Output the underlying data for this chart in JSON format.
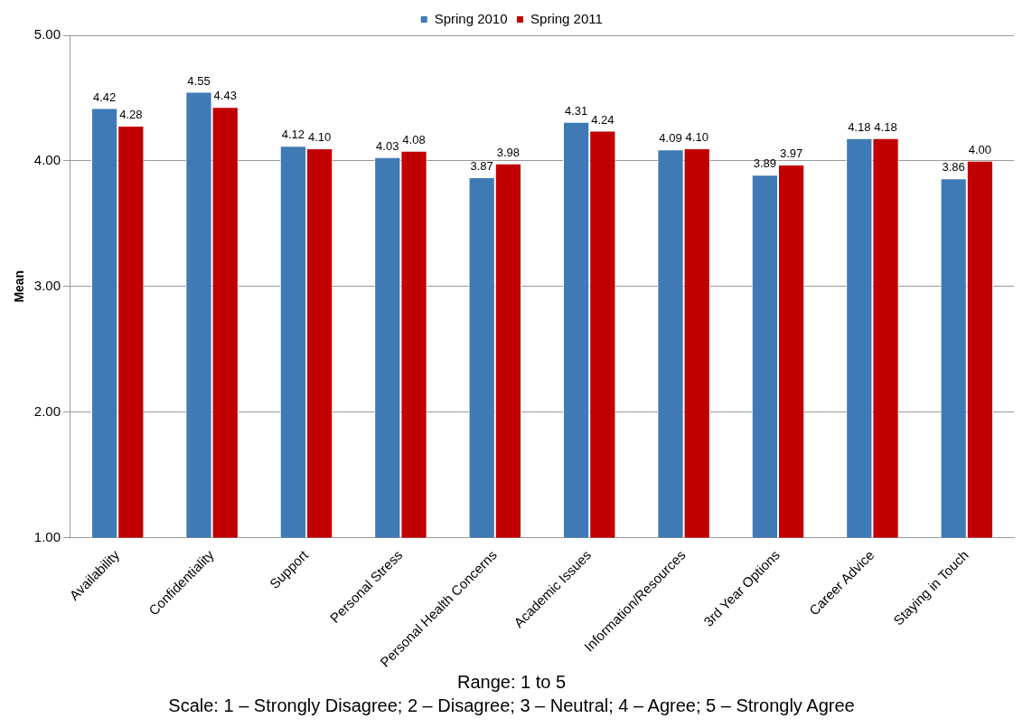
{
  "chart_data": {
    "type": "bar",
    "ylabel": "Mean",
    "categories": [
      "Availability",
      "Confidentiality",
      "Support",
      "Personal Stress",
      "Personal Health Concerns",
      "Academic Issues",
      "Information/Resources",
      "3rd Year Options",
      "Career Advice",
      "Staying in Touch"
    ],
    "series": [
      {
        "name": "Spring 2010",
        "color": "#3f7ab5",
        "values": [
          4.42,
          4.55,
          4.12,
          4.03,
          3.87,
          4.31,
          4.09,
          3.89,
          4.18,
          3.86
        ],
        "value_labels": [
          "4.42",
          "4.55",
          "4.12",
          "4.03",
          "3.87",
          "4.31",
          "4.09",
          "3.89",
          "4.18",
          "3.86"
        ]
      },
      {
        "name": "Spring 2011",
        "color": "#c00000",
        "values": [
          4.28,
          4.43,
          4.1,
          4.08,
          3.98,
          4.24,
          4.1,
          3.97,
          4.18,
          4.0
        ],
        "value_labels": [
          "4.28",
          "4.43",
          "4.10",
          "4.08",
          "3.98",
          "4.24",
          "4.10",
          "3.97",
          "4.18",
          "4.00"
        ]
      }
    ],
    "ylim": [
      1,
      5
    ],
    "yticks": [
      {
        "value": 1,
        "label": "1.00"
      },
      {
        "value": 2,
        "label": "2.00"
      },
      {
        "value": 3,
        "label": "3.00"
      },
      {
        "value": 4,
        "label": "4.00"
      },
      {
        "value": 5,
        "label": "5.00"
      }
    ],
    "grid": "y",
    "legend": "top",
    "annotations": [
      "Range: 1 to 5",
      "Scale: 1 – Strongly Disagree; 2 – Disagree; 3 – Neutral; 4 – Agree; 5 – Strongly Agree"
    ]
  }
}
